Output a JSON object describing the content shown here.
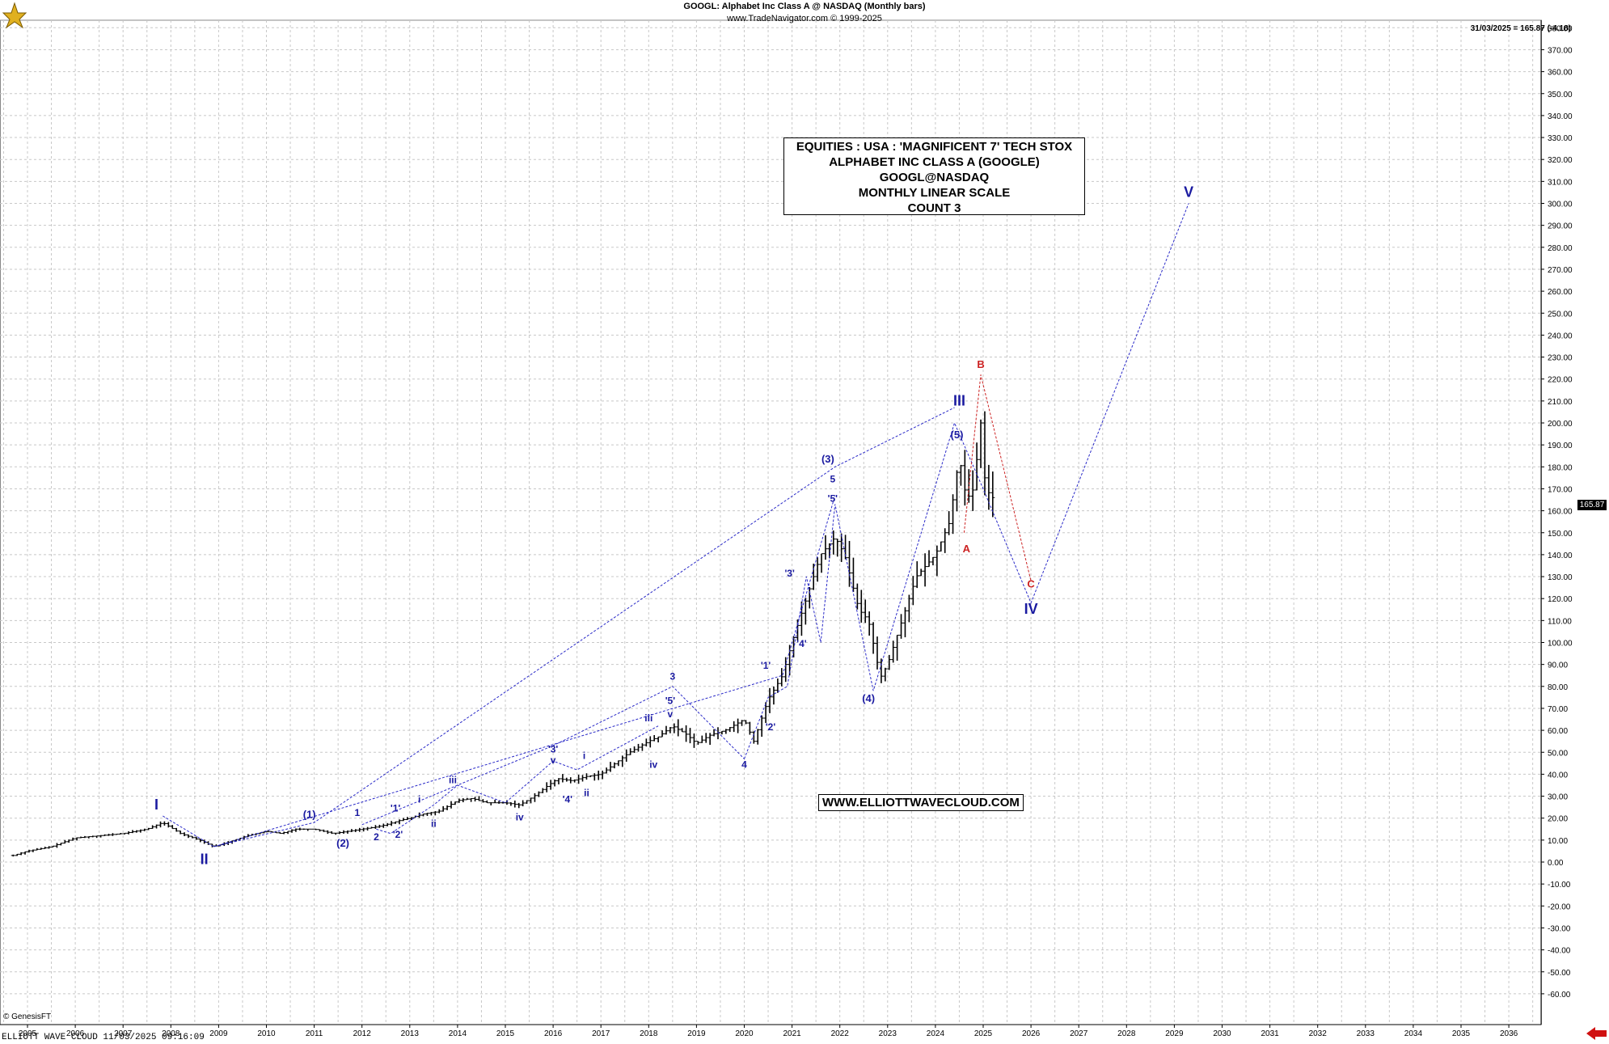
{
  "header": {
    "line1": "GOOGL:  Alphabet Inc Class A @ NASDAQ  (Monthly bars)",
    "line2": "www.TradeNavigator.com © 1999-2025",
    "last_quote": "31/03/2025 = 165.87 (-4.18)",
    "price_tag": "165.87"
  },
  "title_box": {
    "lines": [
      "EQUITIES : USA : 'MAGNIFICENT 7' TECH STOX",
      "ALPHABET INC CLASS A (GOOGLE)",
      "GOOGL@NASDAQ",
      "MONTHLY LINEAR SCALE",
      "COUNT 3"
    ]
  },
  "website": "WWW.ELLIOTTWAVECLOUD.COM",
  "footer": "ELLIOTT WAVE CLOUD   11/03/2025 09:16:09",
  "genesis": "© GenesisFT",
  "colors": {
    "grid": "#c8c8c8",
    "bars": "#000000",
    "wave_blue": "#1a1aa0",
    "wave_red": "#cc2222",
    "path_blue": "#2a2ac8",
    "path_red": "#cc2222"
  },
  "chart_data": {
    "type": "line",
    "title": "GOOGL:  Alphabet Inc Class A @ NASDAQ  (Monthly bars)",
    "x_ticks": [
      "2005",
      "2006",
      "2007",
      "2008",
      "2009",
      "2010",
      "2011",
      "2012",
      "2013",
      "2014",
      "2015",
      "2016",
      "2017",
      "2018",
      "2019",
      "2020",
      "2021",
      "2022",
      "2023",
      "2024",
      "2025",
      "2026",
      "2027",
      "2028",
      "2029",
      "2030",
      "2031",
      "2032",
      "2033",
      "2034",
      "2035",
      "2036"
    ],
    "y_ticks": [
      "380.00",
      "370.00",
      "360.00",
      "350.00",
      "340.00",
      "330.00",
      "320.00",
      "310.00",
      "300.00",
      "290.00",
      "280.00",
      "270.00",
      "260.00",
      "250.00",
      "240.00",
      "230.00",
      "220.00",
      "210.00",
      "200.00",
      "190.00",
      "180.00",
      "170.00",
      "160.00",
      "150.00",
      "140.00",
      "130.00",
      "120.00",
      "110.00",
      "100.00",
      "90.00",
      "80.00",
      "70.00",
      "60.00",
      "50.00",
      "40.00",
      "30.00",
      "20.00",
      "10.00",
      "0.00",
      "-10.00",
      "-20.00",
      "-30.00",
      "-40.00",
      "-50.00",
      "-60.00"
    ],
    "ylim": [
      -65,
      385
    ],
    "xlim": [
      2004.5,
      2037.0
    ],
    "grid": true,
    "price_path": {
      "x": [
        2004.7,
        2005.0,
        2005.5,
        2006.0,
        2006.5,
        2007.0,
        2007.5,
        2007.83,
        2008.2,
        2008.6,
        2008.9,
        2009.2,
        2009.6,
        2010.0,
        2010.3,
        2010.6,
        2011.0,
        2011.4,
        2011.7,
        2012.0,
        2012.3,
        2012.5,
        2012.8,
        2013.0,
        2013.3,
        2013.6,
        2014.0,
        2014.3,
        2014.6,
        2015.0,
        2015.3,
        2015.6,
        2015.9,
        2016.1,
        2016.4,
        2016.7,
        2017.0,
        2017.3,
        2017.6,
        2018.0,
        2018.2,
        2018.5,
        2018.8,
        2019.0,
        2019.3,
        2019.6,
        2020.0,
        2020.2,
        2020.5,
        2020.8,
        2021.0,
        2021.3,
        2021.6,
        2021.9,
        2022.1,
        2022.4,
        2022.6,
        2022.85,
        2023.0,
        2023.3,
        2023.6,
        2024.0,
        2024.3,
        2024.5,
        2024.65,
        2024.8,
        2024.95,
        2025.05,
        2025.2
      ],
      "y": [
        3,
        5,
        7,
        11,
        12,
        13,
        15,
        18,
        13,
        10,
        7,
        9,
        12,
        14,
        13,
        15,
        15,
        13,
        14,
        15,
        16,
        17,
        19,
        20,
        22,
        23,
        28,
        29,
        27,
        27,
        26,
        30,
        35,
        38,
        37,
        39,
        40,
        45,
        50,
        55,
        57,
        62,
        58,
        54,
        58,
        60,
        65,
        55,
        74,
        85,
        100,
        120,
        140,
        148,
        140,
        115,
        110,
        84,
        90,
        110,
        130,
        140,
        155,
        185,
        165,
        170,
        200,
        170,
        166
      ]
    },
    "wave_paths": [
      {
        "color": "blue",
        "points": [
          [
            2007.83,
            21
          ],
          [
            2008.9,
            7
          ],
          [
            2011.0,
            18
          ],
          [
            2021.9,
            180
          ],
          [
            2024.4,
            207
          ]
        ]
      },
      {
        "color": "blue",
        "points": [
          [
            2008.9,
            7
          ],
          [
            2020.8,
            85
          ],
          [
            2021.9,
            167
          ]
        ]
      },
      {
        "color": "blue",
        "points": [
          [
            2012.0,
            17
          ],
          [
            2016.0,
            53
          ],
          [
            2018.5,
            80
          ],
          [
            2020.0,
            47
          ]
        ]
      },
      {
        "color": "blue",
        "points": [
          [
            2012.3,
            15
          ],
          [
            2012.6,
            13
          ],
          [
            2013.5,
            26
          ],
          [
            2014.0,
            35
          ],
          [
            2015.0,
            27
          ],
          [
            2016.0,
            46
          ],
          [
            2016.5,
            42
          ],
          [
            2018.2,
            62
          ]
        ]
      },
      {
        "color": "blue",
        "points": [
          [
            2020.0,
            47
          ],
          [
            2020.5,
            75
          ],
          [
            2020.9,
            80
          ],
          [
            2021.3,
            130
          ],
          [
            2021.6,
            100
          ],
          [
            2021.9,
            163
          ],
          [
            2022.7,
            78
          ],
          [
            2024.4,
            200
          ],
          [
            2025.0,
            170
          ],
          [
            2026.0,
            118
          ],
          [
            2029.3,
            300
          ]
        ]
      },
      {
        "color": "red",
        "points": [
          [
            2024.6,
            150
          ],
          [
            2024.95,
            222
          ],
          [
            2026.0,
            128
          ]
        ]
      }
    ],
    "wave_labels": [
      {
        "text": "I",
        "x": 2007.7,
        "y": 24,
        "color": "blue",
        "size": 18
      },
      {
        "text": "II",
        "x": 2008.7,
        "y": -1,
        "color": "blue",
        "size": 18
      },
      {
        "text": "(1)",
        "x": 2010.9,
        "y": 20,
        "color": "blue",
        "size": 13
      },
      {
        "text": "(2)",
        "x": 2011.6,
        "y": 7,
        "color": "blue",
        "size": 13
      },
      {
        "text": "1",
        "x": 2011.9,
        "y": 21,
        "color": "blue",
        "size": 12
      },
      {
        "text": "2",
        "x": 2012.3,
        "y": 10,
        "color": "blue",
        "size": 12
      },
      {
        "text": "'1'",
        "x": 2012.7,
        "y": 23,
        "color": "blue",
        "size": 12
      },
      {
        "text": "'2'",
        "x": 2012.75,
        "y": 11,
        "color": "blue",
        "size": 12
      },
      {
        "text": "i",
        "x": 2013.2,
        "y": 27,
        "color": "blue",
        "size": 12
      },
      {
        "text": "ii",
        "x": 2013.5,
        "y": 16,
        "color": "blue",
        "size": 12
      },
      {
        "text": "iii",
        "x": 2013.9,
        "y": 36,
        "color": "blue",
        "size": 12
      },
      {
        "text": "iv",
        "x": 2015.3,
        "y": 19,
        "color": "blue",
        "size": 12
      },
      {
        "text": "'3'",
        "x": 2016.0,
        "y": 50,
        "color": "blue",
        "size": 12
      },
      {
        "text": "v",
        "x": 2016.0,
        "y": 45,
        "color": "blue",
        "size": 12
      },
      {
        "text": "i",
        "x": 2016.65,
        "y": 47,
        "color": "blue",
        "size": 12
      },
      {
        "text": "'4'",
        "x": 2016.3,
        "y": 27,
        "color": "blue",
        "size": 12
      },
      {
        "text": "ii",
        "x": 2016.7,
        "y": 30,
        "color": "blue",
        "size": 12
      },
      {
        "text": "iii",
        "x": 2018.0,
        "y": 64,
        "color": "blue",
        "size": 12
      },
      {
        "text": "iv",
        "x": 2018.1,
        "y": 43,
        "color": "blue",
        "size": 12
      },
      {
        "text": "3",
        "x": 2018.5,
        "y": 83,
        "color": "blue",
        "size": 12
      },
      {
        "text": "'5'",
        "x": 2018.45,
        "y": 72,
        "color": "blue",
        "size": 12
      },
      {
        "text": "v",
        "x": 2018.45,
        "y": 66,
        "color": "blue",
        "size": 12
      },
      {
        "text": "4",
        "x": 2020.0,
        "y": 43,
        "color": "blue",
        "size": 12
      },
      {
        "text": "'1'",
        "x": 2020.45,
        "y": 88,
        "color": "blue",
        "size": 12
      },
      {
        "text": "'2'",
        "x": 2020.55,
        "y": 60,
        "color": "blue",
        "size": 12
      },
      {
        "text": "'3'",
        "x": 2020.95,
        "y": 130,
        "color": "blue",
        "size": 12
      },
      {
        "text": "'4'",
        "x": 2021.2,
        "y": 98,
        "color": "blue",
        "size": 12
      },
      {
        "text": "(3)",
        "x": 2021.75,
        "y": 182,
        "color": "blue",
        "size": 13
      },
      {
        "text": "5",
        "x": 2021.85,
        "y": 173,
        "color": "blue",
        "size": 12
      },
      {
        "text": "'5'",
        "x": 2021.85,
        "y": 164,
        "color": "blue",
        "size": 12
      },
      {
        "text": "(4)",
        "x": 2022.6,
        "y": 73,
        "color": "blue",
        "size": 13
      },
      {
        "text": "(5)",
        "x": 2024.45,
        "y": 193,
        "color": "blue",
        "size": 13
      },
      {
        "text": "III",
        "x": 2024.5,
        "y": 208,
        "color": "blue",
        "size": 18
      },
      {
        "text": "A",
        "x": 2024.65,
        "y": 141,
        "color": "red",
        "size": 13
      },
      {
        "text": "B",
        "x": 2024.95,
        "y": 225,
        "color": "red",
        "size": 13
      },
      {
        "text": "C",
        "x": 2026.0,
        "y": 125,
        "color": "red",
        "size": 13
      },
      {
        "text": "IV",
        "x": 2026.0,
        "y": 113,
        "color": "blue",
        "size": 18
      },
      {
        "text": "V",
        "x": 2029.3,
        "y": 303,
        "color": "blue",
        "size": 18
      }
    ]
  }
}
